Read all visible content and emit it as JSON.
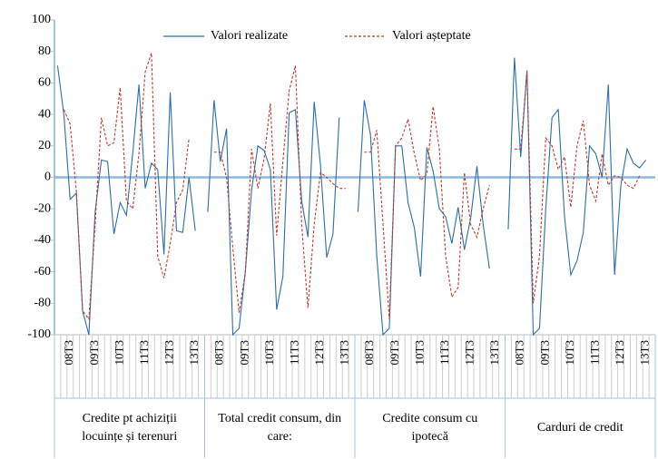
{
  "chart_data": {
    "type": "line",
    "ylim": [
      -100,
      100
    ],
    "yticks": [
      -100,
      -80,
      -60,
      -40,
      -20,
      0,
      20,
      40,
      60,
      80,
      100
    ],
    "grid": false,
    "legend": "top",
    "groups": [
      {
        "label": [
          "Credite pt achiziții",
          "locuințe și terenuri"
        ],
        "categories": [
          null,
          null,
          "08T3",
          null,
          null,
          null,
          "09T3",
          null,
          null,
          null,
          "10T3",
          null,
          null,
          null,
          "11T3",
          null,
          null,
          null,
          "12T3",
          null,
          null,
          null,
          "13T3",
          null
        ]
      },
      {
        "label": [
          "Total credit consum, din",
          "care:"
        ],
        "categories": [
          null,
          null,
          "08T3",
          null,
          null,
          null,
          "09T3",
          null,
          null,
          null,
          "10T3",
          null,
          null,
          null,
          "11T3",
          null,
          null,
          null,
          "12T3",
          null,
          null,
          null,
          "13T3",
          null
        ]
      },
      {
        "label": [
          "Credite consum cu",
          "ipotecă"
        ],
        "categories": [
          null,
          null,
          "08T3",
          null,
          null,
          null,
          "09T3",
          null,
          null,
          null,
          "10T3",
          null,
          null,
          null,
          "11T3",
          null,
          null,
          null,
          "12T3",
          null,
          null,
          null,
          "13T3",
          null
        ]
      },
      {
        "label": [
          "Carduri de credit"
        ],
        "categories": [
          null,
          null,
          "08T3",
          null,
          null,
          null,
          "09T3",
          null,
          null,
          null,
          "10T3",
          null,
          null,
          null,
          "11T3",
          null,
          null,
          null,
          "12T3",
          null,
          null,
          null,
          "13T3",
          null
        ]
      }
    ],
    "series": [
      {
        "name": "Valori realizate",
        "color": "#2e6da4",
        "dash": false,
        "values": [
          [
            71,
            40,
            -14,
            -10,
            -85,
            -100,
            -22,
            11,
            10,
            -36,
            -16,
            -24,
            15,
            59,
            -7,
            9,
            5,
            -49,
            54,
            -34,
            -35,
            0,
            -34,
            null
          ],
          [
            -22,
            49,
            10,
            31,
            -100,
            -96,
            -60,
            -8,
            20,
            17,
            5,
            -84,
            -63,
            41,
            43,
            -15,
            -38,
            48,
            8,
            -51,
            -36,
            38,
            null,
            null
          ],
          [
            -22,
            49,
            27,
            -50,
            -100,
            -96,
            20,
            20,
            -16,
            -32,
            -63,
            19,
            4,
            -20,
            -25,
            -42,
            -19,
            -46,
            -26,
            7,
            -30,
            -58,
            null,
            null
          ],
          [
            -33,
            76,
            13,
            68,
            -100,
            -96,
            -20,
            38,
            43,
            -25,
            -62,
            -53,
            -35,
            20,
            15,
            0,
            59,
            -62,
            -5,
            18,
            9,
            6,
            11,
            null
          ]
        ]
      },
      {
        "name": "Valori așteptate",
        "color": "#c0392b",
        "dash": true,
        "values": [
          [
            null,
            43,
            34,
            -9,
            -85,
            -90,
            -30,
            38,
            20,
            22,
            57,
            -15,
            -20,
            15,
            67,
            79,
            -50,
            -64,
            -42,
            -16,
            -8,
            25,
            null,
            null
          ],
          [
            null,
            16,
            16,
            0,
            -45,
            -86,
            -60,
            18,
            -7,
            12,
            47,
            -37,
            10,
            55,
            71,
            -30,
            -83,
            -30,
            3,
            0,
            -4,
            -7,
            -7,
            null
          ],
          [
            null,
            16,
            16,
            30,
            -30,
            -90,
            20,
            25,
            37,
            15,
            -2,
            2,
            45,
            18,
            -50,
            -76,
            -70,
            3,
            -30,
            -38,
            -20,
            -5,
            null,
            null
          ],
          [
            null,
            18,
            18,
            67,
            -80,
            -50,
            25,
            20,
            5,
            13,
            -19,
            20,
            36,
            -5,
            -15,
            15,
            -5,
            1,
            0,
            -5,
            -7,
            1,
            null,
            null
          ]
        ]
      }
    ]
  }
}
